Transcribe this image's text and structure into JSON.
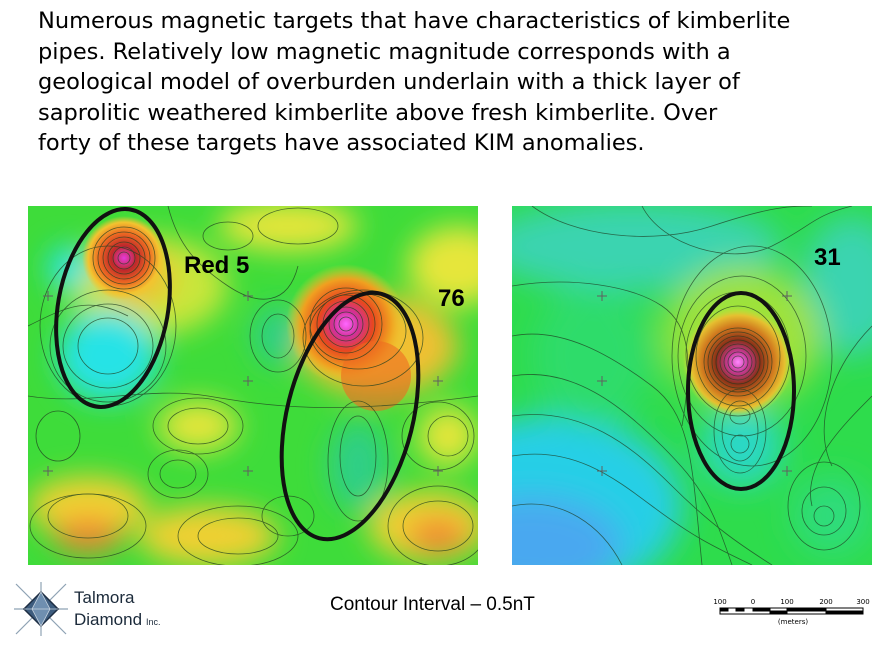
{
  "slide": {
    "body_lines": [
      "Numerous magnetic targets that have characteristics of kimberlite",
      "pipes.  Relatively low magnetic magnitude corresponds with a",
      "geological model of overburden underlain with a thick layer of",
      "saprolitic weathered kimberlite above fresh kimberlite.  Over",
      "forty of these targets have associated KIM anomalies."
    ]
  },
  "maps": {
    "left": {
      "labels": [
        "Red 5",
        "76"
      ]
    },
    "right": {
      "labels": [
        "31"
      ]
    }
  },
  "footer": {
    "contour_interval": "Contour Interval – 0.5nT",
    "logo_line1": "Talmora",
    "logo_line2": "Diamond",
    "logo_inc": "Inc.",
    "scale_ticks": [
      "100",
      "0",
      "100",
      "200",
      "300"
    ],
    "scale_unit": "(meters)"
  },
  "colors": {
    "field_green": "#3edc3a",
    "low_cyan": "#27e3e6",
    "high_orange": "#ee6a22",
    "peak_magenta": "#e43ad8",
    "ellipse": "#111111"
  }
}
